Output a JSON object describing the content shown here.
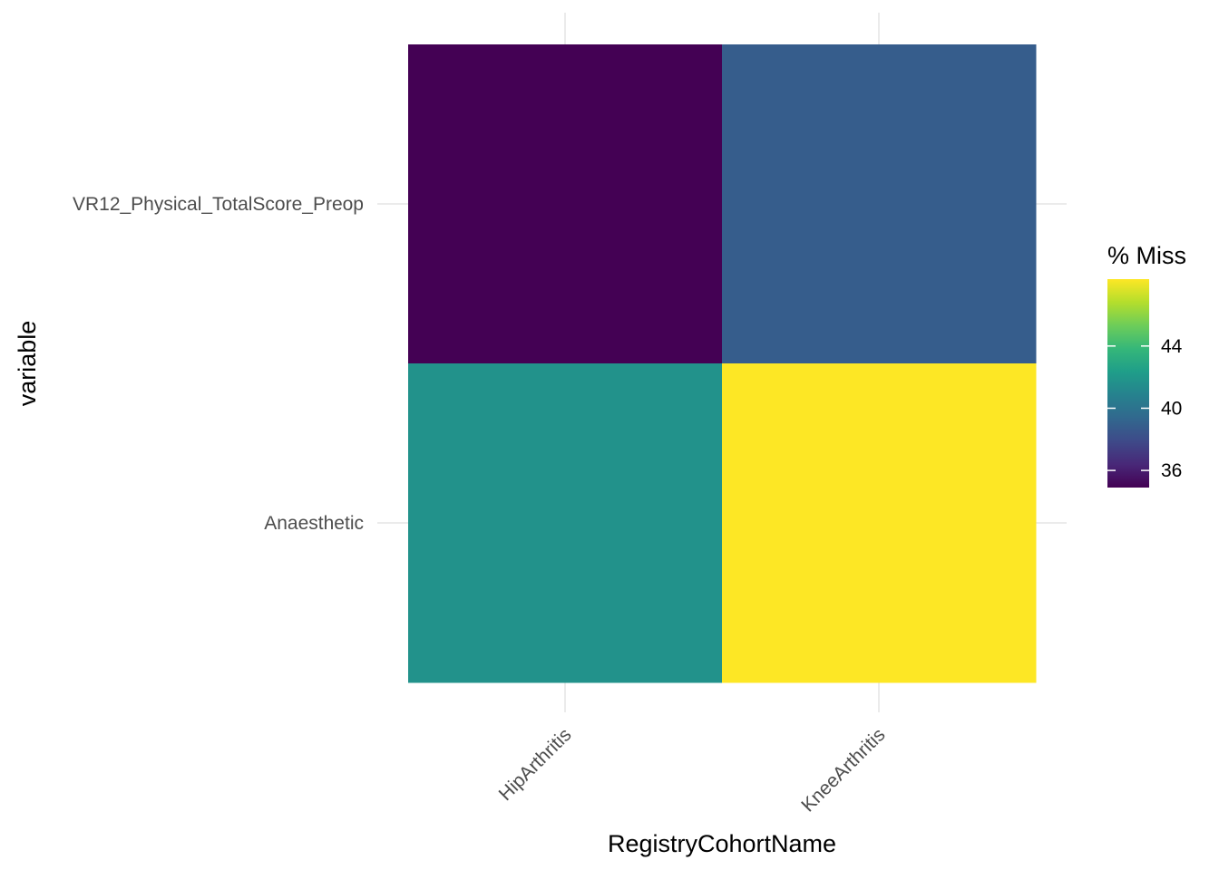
{
  "chart_data": {
    "type": "heatmap",
    "xlabel": "RegistryCohortName",
    "ylabel": "variable",
    "x_categories": [
      "HipArthritis",
      "KneeArthritis"
    ],
    "y_categories": [
      "Anaesthetic",
      "VR12_Physical_TotalScore_Preop"
    ],
    "cells": [
      {
        "x": "HipArthritis",
        "y": "VR12_Physical_TotalScore_Preop",
        "value": 34.9
      },
      {
        "x": "KneeArthritis",
        "y": "VR12_Physical_TotalScore_Preop",
        "value": 38.8
      },
      {
        "x": "HipArthritis",
        "y": "Anaesthetic",
        "value": 41.7
      },
      {
        "x": "KneeArthritis",
        "y": "Anaesthetic",
        "value": 48.3
      }
    ],
    "legend": {
      "title": "% Miss",
      "breaks": [
        36,
        40,
        44
      ],
      "range": [
        34.9,
        48.3
      ],
      "palette": "viridis",
      "position": "right"
    },
    "grid": true
  }
}
